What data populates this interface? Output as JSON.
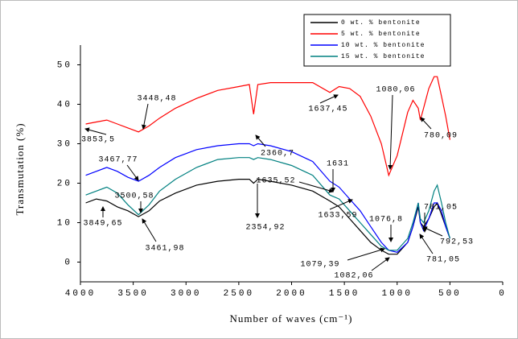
{
  "chart_data": {
    "type": "line",
    "ylabel": "Transmutation (%)",
    "xlabel": "Number of waves (cm⁻¹)",
    "xlim": [
      4000,
      0
    ],
    "xticks": [
      4000,
      3500,
      3000,
      2500,
      2000,
      1500,
      1000,
      500,
      0
    ],
    "ylim": [
      -5,
      55
    ],
    "yticks": [
      0,
      10,
      20,
      30,
      40,
      50
    ],
    "legend": "top-right",
    "x": [
      3950,
      3850,
      3750,
      3650,
      3550,
      3450,
      3350,
      3250,
      3100,
      2900,
      2700,
      2500,
      2400,
      2360,
      2320,
      2200,
      2000,
      1800,
      1637,
      1550,
      1450,
      1350,
      1250,
      1150,
      1080,
      1000,
      900,
      850,
      800,
      780,
      750,
      700,
      650,
      620,
      580,
      540,
      500
    ],
    "series": [
      {
        "name": "0 wt. % bentonite",
        "color": "#000000",
        "values": [
          15,
          16,
          15.5,
          14,
          13,
          11.5,
          13,
          15.5,
          17.5,
          19.5,
          20.5,
          21,
          21,
          20,
          21,
          20.5,
          19.5,
          18,
          15.5,
          14,
          11,
          8,
          5,
          3,
          2,
          2,
          5,
          9,
          14,
          10,
          9,
          11,
          14,
          15,
          12,
          9,
          6
        ]
      },
      {
        "name": "5 wt. % bentonite",
        "color": "#ff0000",
        "values": [
          35,
          35.5,
          36,
          35,
          34,
          33,
          34.5,
          36.5,
          39,
          41.5,
          43.5,
          44.5,
          45,
          37.5,
          45,
          45.5,
          45.5,
          45.5,
          43,
          44.5,
          44,
          42,
          37,
          30,
          22,
          27,
          38,
          41,
          39,
          36,
          39,
          44,
          47,
          47,
          42,
          37,
          31
        ]
      },
      {
        "name": "10 wt. % bentonite",
        "color": "#0000ff",
        "values": [
          22,
          23,
          24,
          23,
          21.5,
          20.5,
          22,
          24,
          26.5,
          28.5,
          29.5,
          30,
          30,
          29.5,
          30,
          29.5,
          28,
          25.5,
          20.5,
          19,
          16,
          13,
          9,
          5,
          3,
          2.5,
          5,
          9,
          15,
          10,
          8,
          11,
          15,
          15,
          13,
          9,
          6
        ]
      },
      {
        "name": "15 wt. % bentonite",
        "color": "#008080",
        "values": [
          17,
          18,
          19,
          17.5,
          14.5,
          12,
          14.5,
          18,
          21,
          24,
          26,
          26.5,
          26.5,
          26,
          26.5,
          26,
          24.5,
          22,
          17,
          16,
          13,
          10,
          7,
          4,
          3,
          3,
          6,
          10,
          15,
          11,
          10,
          13,
          18,
          19.5,
          15,
          10,
          6
        ]
      }
    ],
    "annotations": [
      {
        "text": "3448,48"
      },
      {
        "text": "3853,5"
      },
      {
        "text": "2360,7"
      },
      {
        "text": "1637,45"
      },
      {
        "text": "1080,06"
      },
      {
        "text": "780,09"
      },
      {
        "text": "3467,77"
      },
      {
        "text": "3500,58"
      },
      {
        "text": "3849,65"
      },
      {
        "text": "3461,98"
      },
      {
        "text": "2354,92"
      },
      {
        "text": "1635,52"
      },
      {
        "text": "1631"
      },
      {
        "text": "1633,59"
      },
      {
        "text": "1076,8"
      },
      {
        "text": "1079,39"
      },
      {
        "text": "1082,06"
      },
      {
        "text": "781,05"
      },
      {
        "text": "792,53"
      },
      {
        "text": "781,05"
      }
    ]
  }
}
